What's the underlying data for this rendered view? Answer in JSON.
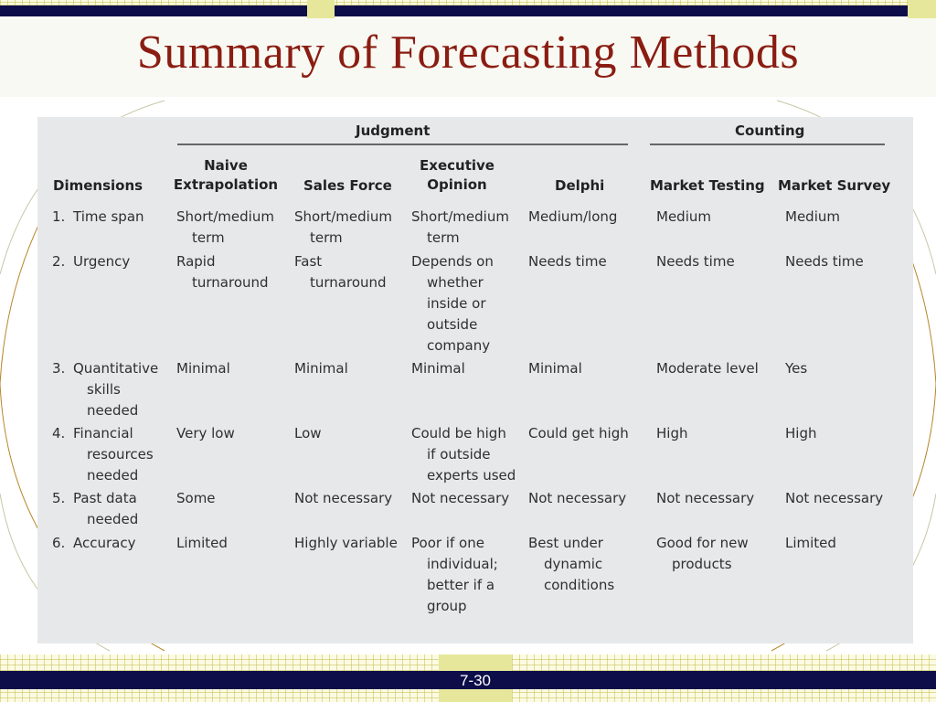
{
  "slide": {
    "title": "Summary of Forecasting Methods",
    "page_number": "7-30"
  },
  "table": {
    "groups": {
      "judgment": "Judgment",
      "counting": "Counting"
    },
    "headers": {
      "dimensions": "Dimensions",
      "naive": [
        "Naive",
        "Extrapolation"
      ],
      "sales_force": "Sales Force",
      "executive": [
        "Executive",
        "Opinion"
      ],
      "delphi": "Delphi",
      "market_testing": "Market Testing",
      "market_survey": "Market Survey"
    },
    "rows": [
      {
        "num": "1.",
        "dim": [
          "Time span"
        ],
        "naive": [
          "Short/medium",
          "term"
        ],
        "sales": [
          "Short/medium",
          "term"
        ],
        "exec": [
          "Short/medium",
          "term"
        ],
        "delphi": [
          "Medium/long"
        ],
        "testing": [
          "Medium"
        ],
        "survey": [
          "Medium"
        ]
      },
      {
        "num": "2.",
        "dim": [
          "Urgency"
        ],
        "naive": [
          "Rapid",
          "turnaround"
        ],
        "sales": [
          "Fast",
          "turnaround"
        ],
        "exec": [
          "Depends on",
          "whether",
          "inside or",
          "outside",
          "company"
        ],
        "delphi": [
          "Needs time"
        ],
        "testing": [
          "Needs time"
        ],
        "survey": [
          "Needs time"
        ]
      },
      {
        "num": "3.",
        "dim": [
          "Quantitative",
          "skills",
          "needed"
        ],
        "naive": [
          "Minimal"
        ],
        "sales": [
          "Minimal"
        ],
        "exec": [
          "Minimal"
        ],
        "delphi": [
          "Minimal"
        ],
        "testing": [
          "Moderate level"
        ],
        "survey": [
          "Yes"
        ]
      },
      {
        "num": "4.",
        "dim": [
          "Financial",
          "resources",
          "needed"
        ],
        "naive": [
          "Very low"
        ],
        "sales": [
          "Low"
        ],
        "exec": [
          "Could be high",
          "if outside",
          "experts used"
        ],
        "delphi": [
          "Could get high"
        ],
        "testing": [
          "High"
        ],
        "survey": [
          "High"
        ]
      },
      {
        "num": "5.",
        "dim": [
          "Past data",
          "needed"
        ],
        "naive": [
          "Some"
        ],
        "sales": [
          "Not necessary"
        ],
        "exec": [
          "Not necessary"
        ],
        "delphi": [
          "Not necessary"
        ],
        "testing": [
          "Not necessary"
        ],
        "survey": [
          "Not necessary"
        ]
      },
      {
        "num": "6.",
        "dim": [
          "Accuracy"
        ],
        "naive": [
          "Limited"
        ],
        "sales": [
          "Highly variable"
        ],
        "exec": [
          "Poor if one",
          "individual;",
          "better if a",
          "group"
        ],
        "delphi": [
          "Best under",
          "dynamic",
          "conditions"
        ],
        "testing": [
          "Good for new",
          "products"
        ],
        "survey": [
          "Limited"
        ]
      }
    ]
  }
}
